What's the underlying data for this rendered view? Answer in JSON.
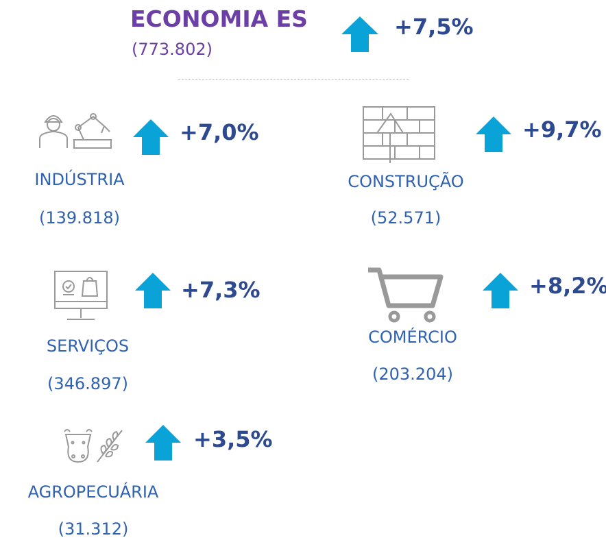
{
  "header": {
    "title": "ECONOMIA ES",
    "value": "(773.802)",
    "change": "+7,5%"
  },
  "sectors": [
    {
      "name": "INDÚSTRIA",
      "value": "(139.818)",
      "change": "+7,0%"
    },
    {
      "name": "CONSTRUÇÃO",
      "value": "(52.571)",
      "change": "+9,7%"
    },
    {
      "name": "SERVIÇOS",
      "value": "(346.897)",
      "change": "+7,3%"
    },
    {
      "name": "COMÉRCIO",
      "value": "(203.204)",
      "change": "+8,2%"
    },
    {
      "name": "AGROPECUÁRIA",
      "value": "(31.312)",
      "change": "+3,5%"
    }
  ]
}
